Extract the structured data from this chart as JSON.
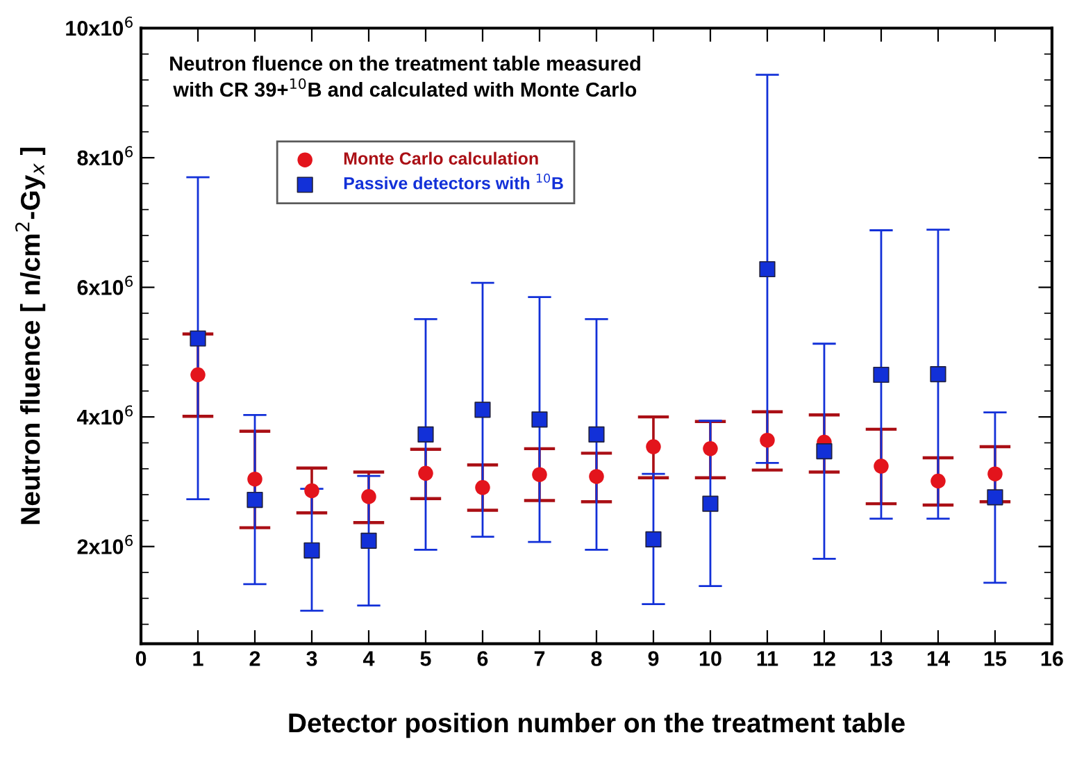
{
  "chart_data": {
    "type": "scatter",
    "title": "Neutron fluence on the treatment table measured\nwith CR 39+$^{10}$B and calculated with Monte Carlo",
    "xlabel": "Detector position number on the treatment table",
    "ylabel": "Neutron fluence [ n/cm$^{2}$-Gy$_{x}$ ]",
    "x": [
      1,
      2,
      3,
      4,
      5,
      6,
      7,
      8,
      9,
      10,
      11,
      12,
      13,
      14,
      15
    ],
    "series": [
      {
        "name": "Monte Carlo calculation",
        "color": "#e3141c",
        "marker": "circle",
        "values": [
          4650000,
          3040000,
          2860000,
          2770000,
          3130000,
          2910000,
          3110000,
          3080000,
          3540000,
          3510000,
          3640000,
          3610000,
          3240000,
          3010000,
          3120000
        ],
        "errors": [
          [
            4010000,
            5280000
          ],
          [
            2290000,
            3780000
          ],
          [
            2520000,
            3210000
          ],
          [
            2370000,
            3150000
          ],
          [
            2740000,
            3500000
          ],
          [
            2560000,
            3260000
          ],
          [
            2710000,
            3510000
          ],
          [
            2690000,
            3440000
          ],
          [
            3060000,
            4000000
          ],
          [
            3060000,
            3930000
          ],
          [
            3180000,
            4080000
          ],
          [
            3150000,
            4030000
          ],
          [
            2660000,
            3810000
          ],
          [
            2640000,
            3370000
          ],
          [
            2690000,
            3540000
          ]
        ]
      },
      {
        "name": "Passive detectors with $^{10}$B",
        "color": "#1230d8",
        "marker": "square",
        "values": [
          5210000,
          2720000,
          1940000,
          2090000,
          3730000,
          4110000,
          3960000,
          3730000,
          2110000,
          2660000,
          6280000,
          3470000,
          4650000,
          4660000,
          2760000
        ],
        "errors": [
          [
            2730000,
            7700000
          ],
          [
            1420000,
            4030000
          ],
          [
            1010000,
            2890000
          ],
          [
            1090000,
            3090000
          ],
          [
            1950000,
            5510000
          ],
          [
            2150000,
            6070000
          ],
          [
            2070000,
            5850000
          ],
          [
            1950000,
            5510000
          ],
          [
            1110000,
            3120000
          ],
          [
            1390000,
            3940000
          ],
          [
            3290000,
            9280000
          ],
          [
            1810000,
            5130000
          ],
          [
            2430000,
            6880000
          ],
          [
            2430000,
            6890000
          ],
          [
            1440000,
            4070000
          ]
        ]
      }
    ],
    "xlim": [
      0,
      16
    ],
    "xticks": [
      0,
      1,
      2,
      3,
      4,
      5,
      6,
      7,
      8,
      9,
      10,
      11,
      12,
      13,
      14,
      15,
      16
    ],
    "ylim": [
      500000,
      10000000
    ],
    "yticks": [
      {
        "value": 2000000,
        "label": "2x10$^{6}$"
      },
      {
        "value": 4000000,
        "label": "4x10$^{6}$"
      },
      {
        "value": 6000000,
        "label": "6x10$^{6}$"
      },
      {
        "value": 8000000,
        "label": "8x10$^{6}$"
      },
      {
        "value": 10000000,
        "label": "10x10$^{6}$"
      }
    ],
    "grid": false,
    "legend": "top left"
  }
}
